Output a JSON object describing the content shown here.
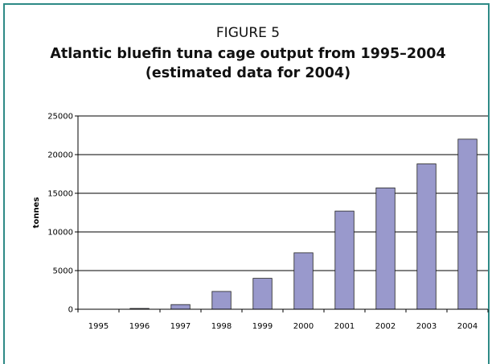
{
  "figure_label": "FIGURE 5",
  "chart_data": {
    "type": "bar",
    "title": [
      "Atlantic bluefin tuna cage output from 1995–2004",
      "(estimated data for 2004)"
    ],
    "xlabel": "",
    "ylabel": "tonnes",
    "categories": [
      "1995",
      "1996",
      "1997",
      "1998",
      "1999",
      "2000",
      "2001",
      "2002",
      "2003",
      "2004"
    ],
    "values": [
      0,
      100,
      600,
      2300,
      4000,
      7300,
      12700,
      15700,
      18800,
      22000
    ],
    "ylim": [
      0,
      25000
    ],
    "yticks": [
      0,
      5000,
      10000,
      15000,
      20000,
      25000
    ],
    "grid": true,
    "legend": "none",
    "colors": {
      "bar_fill": "#9999cc",
      "bar_stroke": "#222222",
      "frame": "#2e8a86"
    }
  }
}
